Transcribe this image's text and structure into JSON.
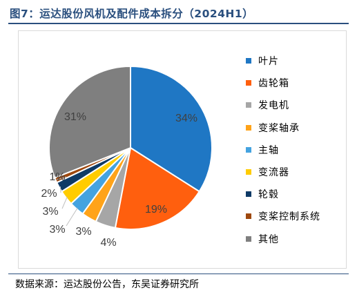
{
  "title": "图7：运达股份风机及配件成本拆分（2024H1）",
  "source": "数据来源：运达股份公告，东吴证券研究所",
  "chart_data": {
    "type": "pie",
    "title": "图7：运达股份风机及配件成本拆分（2024H1）",
    "legend_position": "right",
    "series": [
      {
        "name": "叶片",
        "value": 34,
        "label": "34%",
        "color": "#1f77c4"
      },
      {
        "name": "齿轮箱",
        "value": 19,
        "label": "19%",
        "color": "#ff5f0e"
      },
      {
        "name": "发电机",
        "value": 4,
        "label": "4%",
        "color": "#a6a6a6"
      },
      {
        "name": "变桨轴承",
        "value": 3,
        "label": "3%",
        "color": "#ffa319"
      },
      {
        "name": "主轴",
        "value": 3,
        "label": "3%",
        "color": "#44a3e0"
      },
      {
        "name": "变流器",
        "value": 3,
        "label": "3%",
        "color": "#ffcc00"
      },
      {
        "name": "轮毂",
        "value": 2,
        "label": "2%",
        "color": "#0e3a66"
      },
      {
        "name": "变桨控制系统",
        "value": 1,
        "label": "1%",
        "color": "#9e480e"
      },
      {
        "name": "其他",
        "value": 31,
        "label": "31%",
        "color": "#7f7f7f"
      }
    ]
  }
}
